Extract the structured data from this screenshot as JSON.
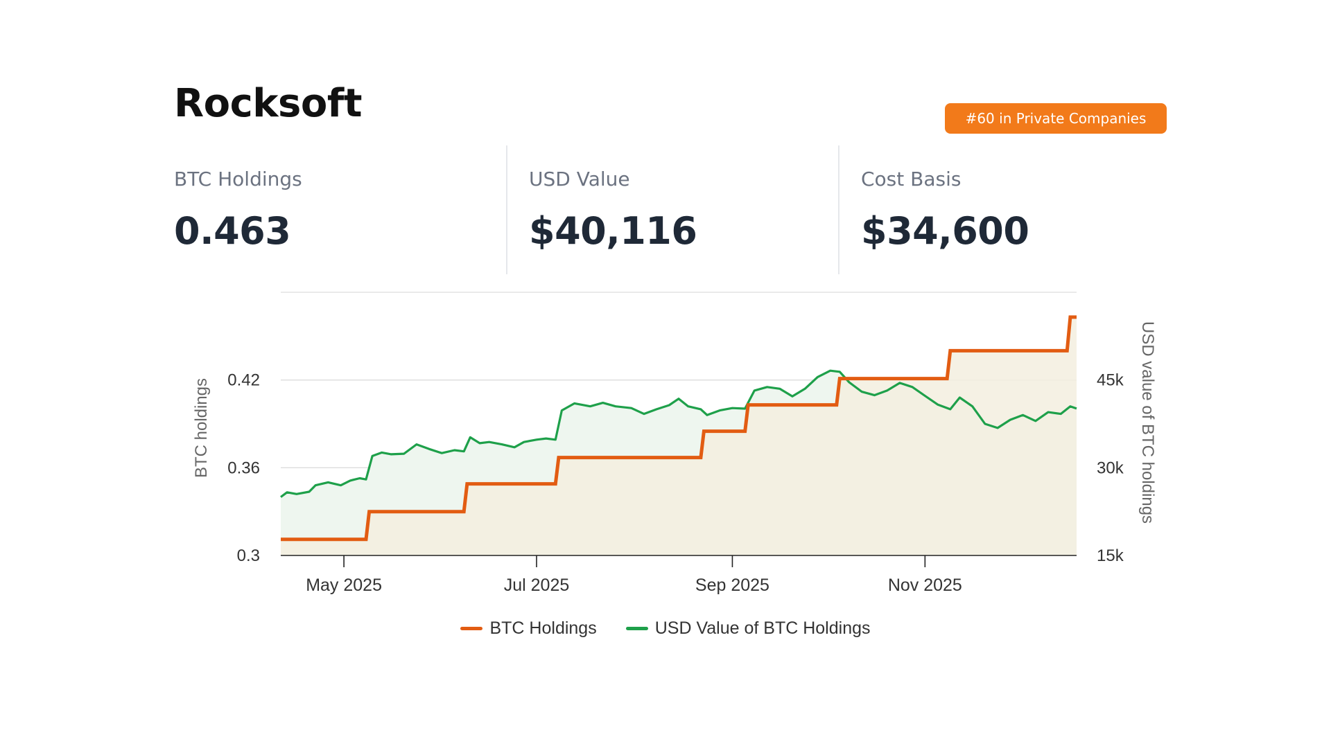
{
  "header": {
    "company_name": "Rocksoft",
    "rank_badge": "#60 in Private Companies"
  },
  "stats": [
    {
      "label": "BTC Holdings",
      "value": "0.463"
    },
    {
      "label": "USD Value",
      "value": "$40,116"
    },
    {
      "label": "Cost Basis",
      "value": "$34,600"
    }
  ],
  "colors": {
    "btc_line": "#e25c12",
    "usd_line": "#1ea04a",
    "btc_fill": "#f3efdf",
    "usd_fill": "#eef6ef",
    "badge": "#f27a1a"
  },
  "chart_data": {
    "type": "line",
    "y_left_label": "BTC holdings",
    "y_right_label": "USD value of BTC holdings",
    "y_left_ticks": [
      "0.3",
      "0.36",
      "0.42"
    ],
    "y_right_ticks": [
      "15k",
      "30k",
      "45k"
    ],
    "x_ticks": [
      "May 2025",
      "Jul 2025",
      "Sep 2025",
      "Nov 2025"
    ],
    "x_range": [
      "2025-04-11",
      "2025-12-19"
    ],
    "ylim_left": [
      0.3,
      0.48
    ],
    "ylim_right": [
      15000,
      60000
    ],
    "grid": "horizontal",
    "legend_position": "bottom",
    "series": [
      {
        "name": "BTC Holdings",
        "axis": "left",
        "shape": "step",
        "points": [
          [
            "2025-04-11",
            0.311
          ],
          [
            "2025-05-08",
            0.311
          ],
          [
            "2025-05-09",
            0.33
          ],
          [
            "2025-06-08",
            0.33
          ],
          [
            "2025-06-09",
            0.349
          ],
          [
            "2025-07-07",
            0.349
          ],
          [
            "2025-07-08",
            0.367
          ],
          [
            "2025-08-22",
            0.367
          ],
          [
            "2025-08-23",
            0.385
          ],
          [
            "2025-09-05",
            0.385
          ],
          [
            "2025-09-06",
            0.403
          ],
          [
            "2025-10-04",
            0.403
          ],
          [
            "2025-10-05",
            0.421
          ],
          [
            "2025-11-08",
            0.421
          ],
          [
            "2025-11-09",
            0.44
          ],
          [
            "2025-12-16",
            0.44
          ],
          [
            "2025-12-17",
            0.463
          ],
          [
            "2025-12-19",
            0.463
          ]
        ]
      },
      {
        "name": "USD Value of BTC Holdings",
        "axis": "right",
        "shape": "line",
        "points": [
          [
            "2025-04-11",
            25000
          ],
          [
            "2025-04-13",
            25800
          ],
          [
            "2025-04-16",
            25500
          ],
          [
            "2025-04-20",
            25900
          ],
          [
            "2025-04-22",
            27000
          ],
          [
            "2025-04-26",
            27500
          ],
          [
            "2025-04-30",
            27000
          ],
          [
            "2025-05-03",
            27800
          ],
          [
            "2025-05-06",
            28200
          ],
          [
            "2025-05-08",
            28000
          ],
          [
            "2025-05-10",
            32000
          ],
          [
            "2025-05-13",
            32600
          ],
          [
            "2025-05-16",
            32300
          ],
          [
            "2025-05-20",
            32400
          ],
          [
            "2025-05-24",
            34000
          ],
          [
            "2025-05-28",
            33200
          ],
          [
            "2025-06-01",
            32500
          ],
          [
            "2025-06-05",
            33000
          ],
          [
            "2025-06-08",
            32800
          ],
          [
            "2025-06-10",
            35200
          ],
          [
            "2025-06-13",
            34200
          ],
          [
            "2025-06-16",
            34400
          ],
          [
            "2025-06-20",
            34000
          ],
          [
            "2025-06-24",
            33500
          ],
          [
            "2025-06-27",
            34400
          ],
          [
            "2025-07-01",
            34800
          ],
          [
            "2025-07-04",
            35000
          ],
          [
            "2025-07-07",
            34800
          ],
          [
            "2025-07-09",
            39800
          ],
          [
            "2025-07-13",
            41000
          ],
          [
            "2025-07-18",
            40500
          ],
          [
            "2025-07-22",
            41100
          ],
          [
            "2025-07-26",
            40500
          ],
          [
            "2025-07-31",
            40200
          ],
          [
            "2025-08-04",
            39200
          ],
          [
            "2025-08-08",
            40000
          ],
          [
            "2025-08-12",
            40700
          ],
          [
            "2025-08-15",
            41800
          ],
          [
            "2025-08-18",
            40500
          ],
          [
            "2025-08-22",
            40000
          ],
          [
            "2025-08-24",
            39000
          ],
          [
            "2025-08-28",
            39800
          ],
          [
            "2025-09-01",
            40200
          ],
          [
            "2025-09-05",
            40100
          ],
          [
            "2025-09-08",
            43200
          ],
          [
            "2025-09-12",
            43800
          ],
          [
            "2025-09-16",
            43500
          ],
          [
            "2025-09-20",
            42200
          ],
          [
            "2025-09-24",
            43500
          ],
          [
            "2025-09-28",
            45500
          ],
          [
            "2025-10-02",
            46600
          ],
          [
            "2025-10-05",
            46400
          ],
          [
            "2025-10-08",
            44600
          ],
          [
            "2025-10-12",
            43000
          ],
          [
            "2025-10-16",
            42400
          ],
          [
            "2025-10-20",
            43200
          ],
          [
            "2025-10-24",
            44500
          ],
          [
            "2025-10-28",
            43800
          ],
          [
            "2025-11-01",
            42300
          ],
          [
            "2025-11-05",
            40800
          ],
          [
            "2025-11-09",
            40000
          ],
          [
            "2025-11-12",
            42000
          ],
          [
            "2025-11-16",
            40500
          ],
          [
            "2025-11-20",
            37500
          ],
          [
            "2025-11-24",
            36800
          ],
          [
            "2025-11-28",
            38200
          ],
          [
            "2025-12-02",
            39000
          ],
          [
            "2025-12-06",
            38000
          ],
          [
            "2025-12-10",
            39500
          ],
          [
            "2025-12-14",
            39200
          ],
          [
            "2025-12-17",
            40500
          ],
          [
            "2025-12-19",
            40116
          ]
        ]
      }
    ]
  }
}
